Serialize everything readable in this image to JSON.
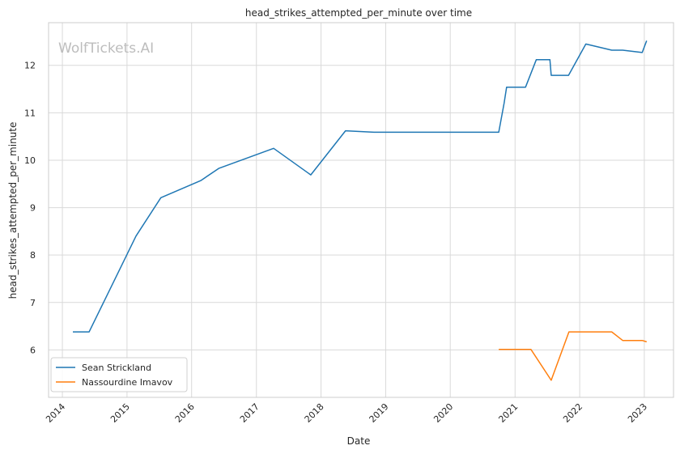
{
  "watermark": "WolfTickets.AI",
  "chart_data": {
    "type": "line",
    "title": "head_strikes_attempted_per_minute over time",
    "xlabel": "Date",
    "ylabel": "head_strikes_attempted_per_minute",
    "xlim": [
      "2013-10-15",
      "2023-06-15"
    ],
    "ylim": [
      5.0,
      12.9
    ],
    "x_ticks": [
      "2014",
      "2015",
      "2016",
      "2017",
      "2018",
      "2019",
      "2020",
      "2021",
      "2022",
      "2023"
    ],
    "y_ticks": [
      6,
      7,
      8,
      9,
      10,
      11,
      12
    ],
    "grid": true,
    "legend_position": "lower-left",
    "series": [
      {
        "name": "Sean Strickland",
        "color": "#1f77b4",
        "x": [
          "2014-03-01",
          "2014-06-01",
          "2015-02-21",
          "2015-07-11",
          "2016-02-21",
          "2016-06-04",
          "2017-04-08",
          "2017-11-04",
          "2018-05-19",
          "2018-10-27",
          "2020-10-01",
          "2020-10-31",
          "2020-11-14",
          "2021-03-01",
          "2021-05-01",
          "2021-07-17",
          "2021-07-24",
          "2021-10-30",
          "2022-02-05",
          "2022-07-01",
          "2022-09-01",
          "2022-12-20",
          "2023-01-14"
        ],
        "y": [
          6.38,
          6.38,
          8.4,
          9.21,
          9.57,
          9.83,
          10.25,
          9.69,
          10.62,
          10.59,
          10.59,
          11.2,
          11.54,
          11.54,
          12.12,
          12.12,
          11.79,
          11.79,
          12.45,
          12.32,
          12.32,
          12.27,
          12.52
        ]
      },
      {
        "name": "Nassourdine Imavov",
        "color": "#ff7f0e",
        "x": [
          "2020-10-01",
          "2021-04-01",
          "2021-07-24",
          "2021-11-01",
          "2022-07-01",
          "2022-09-01",
          "2022-12-20",
          "2023-01-14"
        ],
        "y": [
          6.01,
          6.01,
          5.36,
          6.38,
          6.38,
          6.2,
          6.2,
          6.17
        ]
      }
    ]
  }
}
